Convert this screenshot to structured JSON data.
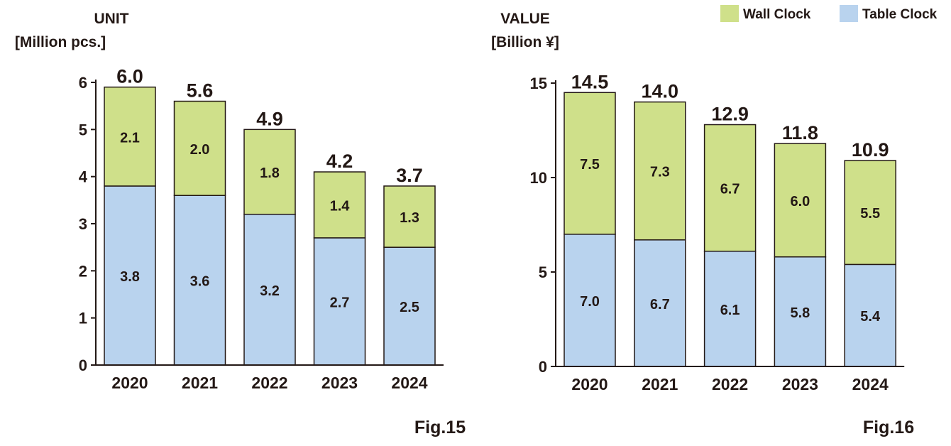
{
  "legend": {
    "items": [
      {
        "label": "Wall Clock",
        "color": "#cfe08a"
      },
      {
        "label": "Table Clock",
        "color": "#b9d3ee"
      }
    ]
  },
  "chart_data": [
    {
      "type": "bar",
      "stacked": true,
      "title_line1": "UNIT",
      "title_line2": "[Million pcs.]",
      "ylabel": "Million pcs.",
      "categories": [
        "2020",
        "2021",
        "2022",
        "2023",
        "2024"
      ],
      "ylim": [
        0,
        6
      ],
      "yticks": [
        0,
        1,
        2,
        3,
        4,
        5,
        6
      ],
      "totals": [
        "6.0",
        "5.6",
        "4.9",
        "4.2",
        "3.7"
      ],
      "series": [
        {
          "name": "Table Clock",
          "color": "#b9d3ee",
          "values": [
            3.8,
            3.6,
            3.2,
            2.7,
            2.5
          ],
          "labels": [
            "3.8",
            "3.6",
            "3.2",
            "2.7",
            "2.5"
          ]
        },
        {
          "name": "Wall Clock",
          "color": "#cfe08a",
          "values": [
            2.1,
            2.0,
            1.8,
            1.4,
            1.3
          ],
          "labels": [
            "2.1",
            "2.0",
            "1.8",
            "1.4",
            "1.3"
          ]
        }
      ],
      "figure_label": "Fig.15"
    },
    {
      "type": "bar",
      "stacked": true,
      "title_line1": "VALUE",
      "title_line2": "[Billion ¥]",
      "ylabel": "Billion ¥",
      "categories": [
        "2020",
        "2021",
        "2022",
        "2023",
        "2024"
      ],
      "ylim": [
        0,
        15
      ],
      "yticks": [
        0,
        5,
        10,
        15
      ],
      "totals": [
        "14.5",
        "14.0",
        "12.9",
        "11.8",
        "10.9"
      ],
      "series": [
        {
          "name": "Table Clock",
          "color": "#b9d3ee",
          "values": [
            7.0,
            6.7,
            6.1,
            5.8,
            5.4
          ],
          "labels": [
            "7.0",
            "6.7",
            "6.1",
            "5.8",
            "5.4"
          ]
        },
        {
          "name": "Wall Clock",
          "color": "#cfe08a",
          "values": [
            7.5,
            7.3,
            6.7,
            6.0,
            5.5
          ],
          "labels": [
            "7.5",
            "7.3",
            "6.7",
            "6.0",
            "5.5"
          ]
        }
      ],
      "figure_label": "Fig.16"
    }
  ]
}
